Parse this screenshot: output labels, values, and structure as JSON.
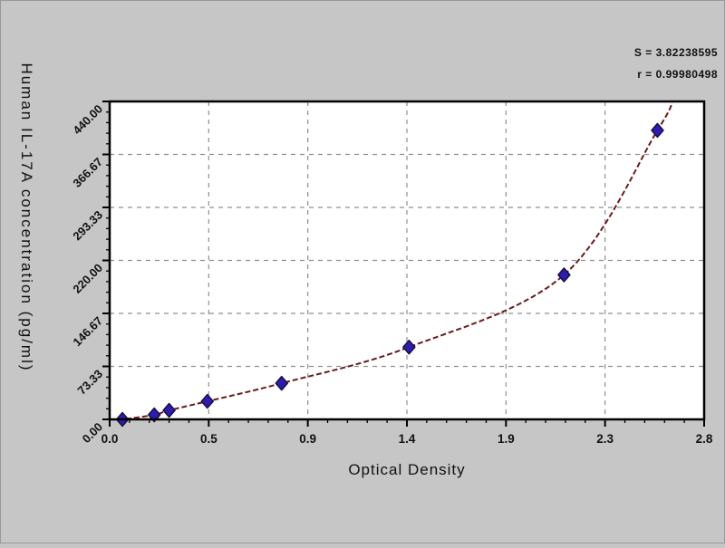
{
  "figure": {
    "background": "#c6c6c6",
    "stats": {
      "s_label": "S = 3.82238595",
      "r_label": "r = 0.99980498"
    }
  },
  "chart_data": {
    "type": "scatter",
    "title": "",
    "xlabel": "Optical Density",
    "ylabel": "Human IL-17A concentration (pg/ml)",
    "xlim": [
      0,
      2.8
    ],
    "ylim": [
      0,
      440
    ],
    "grid": true,
    "x_ticks": [
      {
        "value": 0.0,
        "label": "0.0"
      },
      {
        "value": 0.4667,
        "label": "0.5"
      },
      {
        "value": 0.9333,
        "label": "0.9"
      },
      {
        "value": 1.4,
        "label": "1.4"
      },
      {
        "value": 1.8667,
        "label": "1.9"
      },
      {
        "value": 2.3333,
        "label": "2.3"
      },
      {
        "value": 2.8,
        "label": "2.8"
      }
    ],
    "y_ticks": [
      {
        "value": 440.0,
        "label": "440.00"
      },
      {
        "value": 366.67,
        "label": "366.67"
      },
      {
        "value": 293.33,
        "label": "293.33"
      },
      {
        "value": 220.0,
        "label": "220.00"
      },
      {
        "value": 146.67,
        "label": "146.67"
      },
      {
        "value": 73.33,
        "label": "73.33"
      },
      {
        "value": 0.0,
        "label": "0.00"
      }
    ],
    "minor_ticks_per_interval": 4,
    "series": [
      {
        "name": "standard-points",
        "type": "scatter",
        "marker": "diamond",
        "points": [
          {
            "od": 0.06,
            "conc": 0
          },
          {
            "od": 0.21,
            "conc": 6.25
          },
          {
            "od": 0.28,
            "conc": 12.5
          },
          {
            "od": 0.46,
            "conc": 25
          },
          {
            "od": 0.81,
            "conc": 50
          },
          {
            "od": 1.41,
            "conc": 100
          },
          {
            "od": 2.14,
            "conc": 200
          },
          {
            "od": 2.58,
            "conc": 400
          }
        ]
      },
      {
        "name": "fit-curve",
        "type": "line",
        "dashed": true,
        "points": [
          {
            "od": 0.0,
            "conc": -1
          },
          {
            "od": 0.06,
            "conc": 0
          },
          {
            "od": 0.21,
            "conc": 6.25
          },
          {
            "od": 0.28,
            "conc": 12.5
          },
          {
            "od": 0.46,
            "conc": 25
          },
          {
            "od": 0.81,
            "conc": 50
          },
          {
            "od": 1.41,
            "conc": 100
          },
          {
            "od": 2.14,
            "conc": 200
          },
          {
            "od": 2.58,
            "conc": 400
          },
          {
            "od": 2.65,
            "conc": 440
          }
        ]
      }
    ],
    "colors": {
      "figure_bg": "#c6c6c6",
      "plot_bg": "#ffffff",
      "frame": "#000000",
      "grid": "#8f8f8f",
      "curve": "#6b1a1e",
      "marker_fill": "#2e1cae",
      "marker_edge": "#171040",
      "text": "#111111"
    }
  }
}
